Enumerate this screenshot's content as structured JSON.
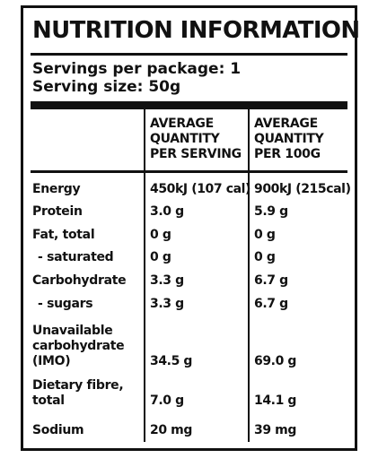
{
  "panel": {
    "title": "NUTRITION INFORMATION",
    "servings_per_package": "Servings per package: 1",
    "serving_size": "Serving size: 50g"
  },
  "columns": {
    "per_serving": [
      "AVERAGE",
      "QUANTITY",
      "PER SERVING"
    ],
    "per_100g": [
      "AVERAGE",
      "QUANTITY",
      "PER 100G"
    ]
  },
  "rows": [
    {
      "label": [
        "Energy"
      ],
      "sub": false,
      "per_serving": "450kJ (107 cal)",
      "per_100g": "900kJ (215cal)"
    },
    {
      "label": [
        "Protein"
      ],
      "sub": false,
      "per_serving": "3.0 g",
      "per_100g": "5.9 g"
    },
    {
      "label": [
        "Fat, total"
      ],
      "sub": false,
      "per_serving": "0 g",
      "per_100g": "0 g"
    },
    {
      "label": [
        "- saturated"
      ],
      "sub": true,
      "per_serving": "0 g",
      "per_100g": "0 g"
    },
    {
      "label": [
        "Carbohydrate"
      ],
      "sub": false,
      "per_serving": "3.3 g",
      "per_100g": "6.7 g"
    },
    {
      "label": [
        "- sugars"
      ],
      "sub": true,
      "per_serving": "3.3 g",
      "per_100g": "6.7 g"
    },
    {
      "label": [
        "Unavailable",
        "carbohydrate",
        "(IMO)"
      ],
      "sub": false,
      "per_serving": "34.5 g",
      "per_100g": "69.0 g"
    },
    {
      "label": [
        "Dietary fibre,",
        "total"
      ],
      "sub": false,
      "per_serving": "7.0 g",
      "per_100g": "14.1 g"
    },
    {
      "label": [
        "Sodium"
      ],
      "sub": false,
      "per_serving": "20 mg",
      "per_100g": "39 mg"
    }
  ]
}
